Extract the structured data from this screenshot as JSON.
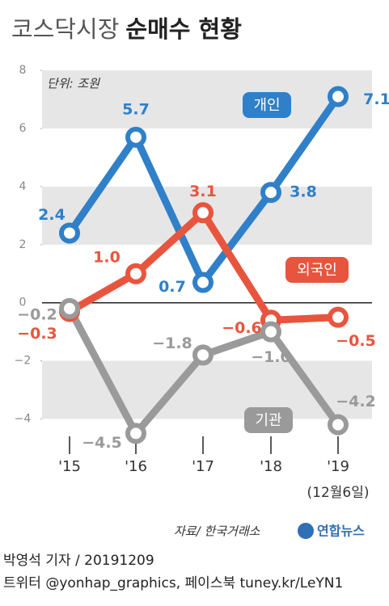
{
  "chart_data": {
    "type": "line",
    "title": {
      "light": "코스닥시장",
      "bold": "순매수 현황"
    },
    "unit": "단위: 조원",
    "categories": [
      "'15",
      "'16",
      "'17",
      "'18",
      "'19"
    ],
    "date_note": "(12월6일)",
    "ylim": [
      -4.6,
      8.2
    ],
    "yticks": [
      8,
      6,
      4,
      2,
      0,
      {
        "value": -2,
        "label": "−2"
      },
      {
        "value": -4,
        "label": "−4"
      }
    ],
    "series": [
      {
        "name": "개인",
        "color": "#2f80c8",
        "values": [
          2.4,
          5.7,
          0.7,
          3.8,
          7.1
        ],
        "value_labels": [
          "2.4",
          "5.7",
          "0.7",
          "3.8",
          "7.1"
        ]
      },
      {
        "name": "외국인",
        "color": "#e8553e",
        "values": [
          -0.3,
          1.0,
          3.1,
          -0.6,
          -0.5
        ],
        "value_labels": [
          "−0.3",
          "1.0",
          "3.1",
          "−0.6",
          "−0.5"
        ]
      },
      {
        "name": "기관",
        "color": "#9a9a9a",
        "values": [
          -0.2,
          -4.5,
          -1.8,
          -1.0,
          -4.2
        ],
        "value_labels": [
          "−0.2",
          "−4.5",
          "−1.8",
          "−1.0",
          "−4.2"
        ]
      }
    ],
    "source": "자료/ 한국거래소",
    "agency": "연합뉴스",
    "byline": "박영석 기자 / 20191209",
    "social": "트위터 @yonhap_graphics, 페이스북 tuney.kr/LeYN1"
  }
}
